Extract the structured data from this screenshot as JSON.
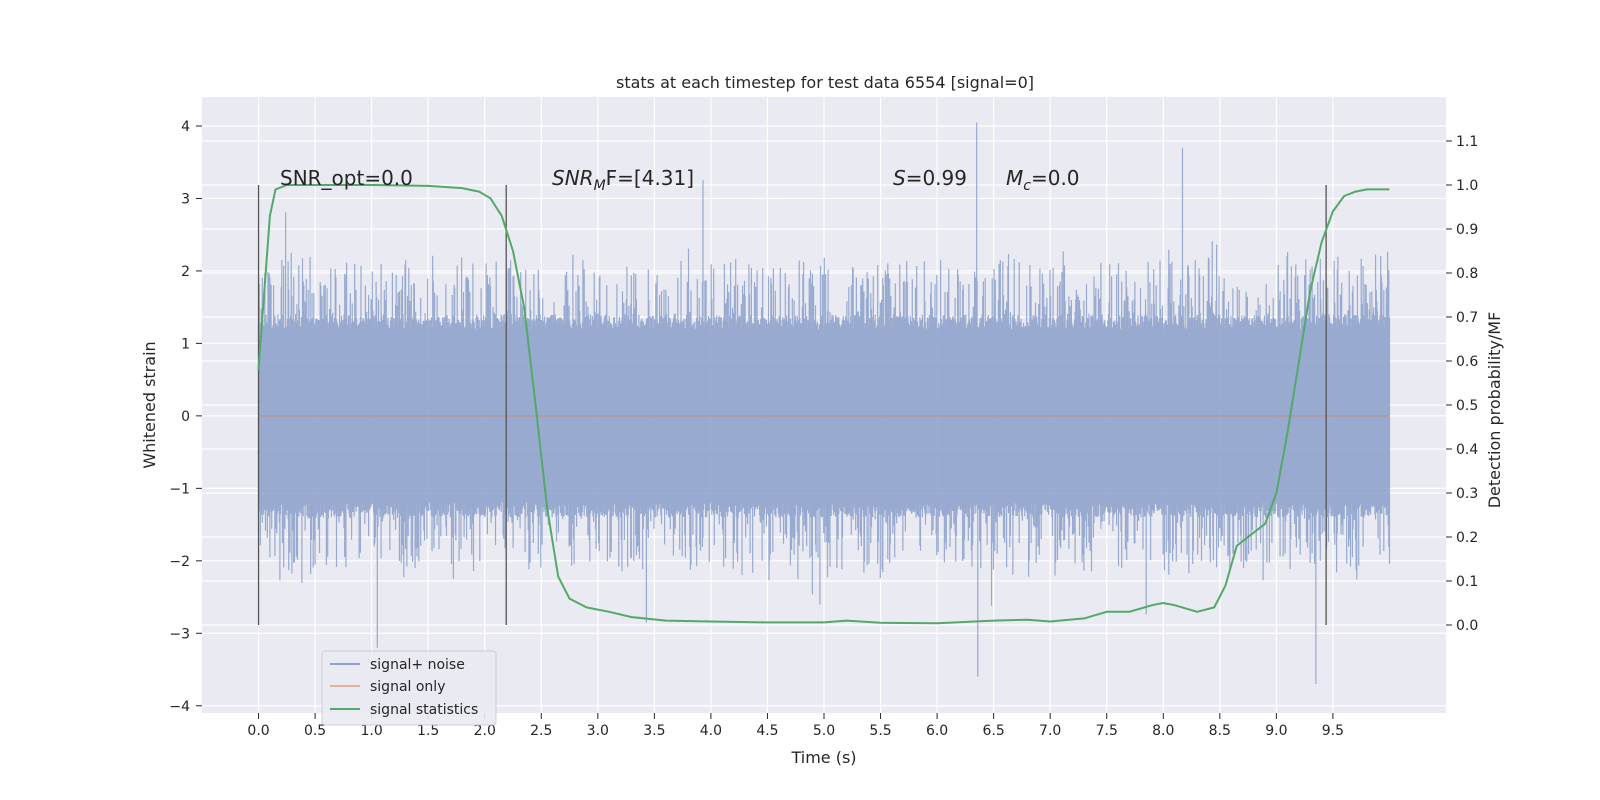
{
  "chart_data": {
    "type": "line",
    "title": "stats at each timestep for test data 6554 [signal=0]",
    "xlabel": "Time (s)",
    "ylabel": "Whitened strain",
    "ylabel_right": "Detection probability/MF",
    "xlim": [
      -0.5,
      10.5
    ],
    "ylim": [
      -4.1,
      4.4
    ],
    "ylim_right": [
      -0.2,
      1.2
    ],
    "x_ticks": [
      "0.0",
      "0.5",
      "1.0",
      "1.5",
      "2.0",
      "2.5",
      "3.0",
      "3.5",
      "4.0",
      "4.5",
      "5.0",
      "5.5",
      "6.0",
      "6.5",
      "7.0",
      "7.5",
      "8.0",
      "8.5",
      "9.0",
      "9.5"
    ],
    "y_ticks": [
      "4",
      "3",
      "2",
      "1",
      "0",
      "−1",
      "−2",
      "−3",
      "−4"
    ],
    "y_ticks_right": [
      "1.1",
      "1.0",
      "0.9",
      "0.8",
      "0.7",
      "0.6",
      "0.5",
      "0.4",
      "0.3",
      "0.2",
      "0.1",
      "0.0"
    ],
    "grid": true,
    "legend_position": "lower-left",
    "annotations": {
      "snr_opt": "SNR_opt=0.0",
      "snr_mf_main": "SNR",
      "snr_mf_sub": "M",
      "snr_mf_tail": "F=[4.31]",
      "s_main": "S",
      "s_tail": "=0.99",
      "mc_main": "M",
      "mc_sub": "c",
      "mc_tail": "=0.0"
    },
    "vertical_markers_x": [
      0.0,
      2.19,
      9.44
    ],
    "series": [
      {
        "name": "signal+ noise",
        "color": "#8fa3cc",
        "description_values": "dense noise band; core approx ±1.4, sparse spikes up to about ±3 to 4",
        "x_range": [
          0.0,
          10.0
        ],
        "peaks": [
          {
            "x": 6.35,
            "y": 4.05
          },
          {
            "x": 8.17,
            "y": 3.7
          },
          {
            "x": 3.93,
            "y": 3.25
          },
          {
            "x": 6.36,
            "y": -3.6
          },
          {
            "x": 9.35,
            "y": -3.7
          },
          {
            "x": 1.05,
            "y": -3.2
          }
        ]
      },
      {
        "name": "signal only",
        "color": "#dd8452",
        "x": [
          0.0,
          10.0
        ],
        "values": [
          0.0,
          0.0
        ]
      },
      {
        "name": "signal statistics",
        "color": "#55a868",
        "x": [
          0.0,
          0.1,
          0.15,
          0.25,
          0.4,
          1.0,
          1.5,
          1.8,
          1.95,
          2.05,
          2.15,
          2.25,
          2.35,
          2.45,
          2.55,
          2.65,
          2.75,
          2.9,
          3.1,
          3.3,
          3.6,
          4.0,
          4.5,
          5.0,
          5.2,
          5.5,
          6.0,
          6.5,
          6.8,
          7.0,
          7.3,
          7.5,
          7.7,
          7.9,
          8.0,
          8.1,
          8.3,
          8.45,
          8.55,
          8.65,
          8.8,
          8.9,
          9.0,
          9.1,
          9.2,
          9.3,
          9.4,
          9.5,
          9.6,
          9.7,
          9.8,
          9.9,
          10.0
        ],
        "values": [
          0.58,
          0.93,
          0.99,
          1.0,
          1.0,
          1.0,
          0.998,
          0.993,
          0.985,
          0.97,
          0.93,
          0.85,
          0.72,
          0.5,
          0.27,
          0.11,
          0.06,
          0.04,
          0.03,
          0.018,
          0.01,
          0.008,
          0.006,
          0.006,
          0.01,
          0.005,
          0.004,
          0.01,
          0.012,
          0.008,
          0.015,
          0.03,
          0.03,
          0.045,
          0.05,
          0.045,
          0.03,
          0.04,
          0.09,
          0.18,
          0.21,
          0.23,
          0.3,
          0.44,
          0.6,
          0.76,
          0.87,
          0.94,
          0.975,
          0.985,
          0.99,
          0.99,
          0.99
        ]
      }
    ]
  }
}
